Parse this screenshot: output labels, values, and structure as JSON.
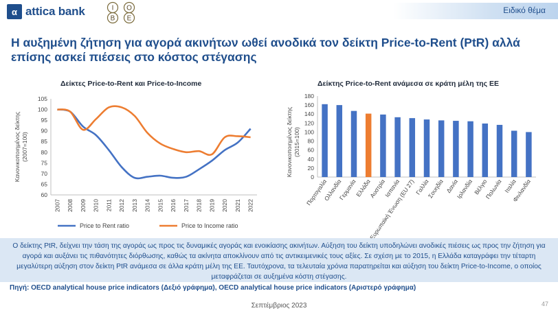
{
  "header": {
    "brand_mark": "α",
    "brand_name": "attica bank",
    "partner_logo": "IOBE",
    "section_label": "Ειδικό θέμα"
  },
  "slide_title": "Η αυξημένη ζήτηση για αγορά ακινήτων ωθεί ανοδικά τον δείκτη Price-to-Rent (PtR) αλλά επίσης ασκεί πιέσεις στο κόστος στέγασης",
  "chart_data": [
    {
      "type": "line",
      "title": "Δείκτες Price-to-Rent και Price-to-Income",
      "ylabel": "Κανονικοποιημένος δείκτης (2007=100)",
      "ylabel_lines": [
        "Κανονικοποιημένος δείκτης",
        "(2007=100)"
      ],
      "x": [
        "2007",
        "2008",
        "2009",
        "2010",
        "2011",
        "2012",
        "2013",
        "2014",
        "2015",
        "2016",
        "2017",
        "2018",
        "2019",
        "2020",
        "2021",
        "2022"
      ],
      "ylim": [
        60,
        105
      ],
      "yticks": [
        60,
        65,
        70,
        75,
        80,
        85,
        90,
        95,
        100,
        105
      ],
      "grid": false,
      "legend_position": "bottom",
      "series": [
        {
          "name": "Price to Rent ratio",
          "color": "#4472c4",
          "values": [
            100,
            99,
            92,
            88,
            81,
            73,
            68,
            68.5,
            69,
            68,
            68.5,
            72,
            76,
            81,
            84.5,
            91
          ]
        },
        {
          "name": "Price to Income ratio",
          "color": "#ed7d31",
          "values": [
            100,
            99,
            90.5,
            95.5,
            101,
            101,
            97,
            89,
            84,
            81.5,
            80,
            80.5,
            79,
            87,
            87.5,
            87
          ]
        }
      ]
    },
    {
      "type": "bar",
      "title": "Δείκτης Price-to-Rent ανάμεσα σε κράτη μέλη της ΕΕ",
      "ylabel": "Κανονικοποιημένος δείκτης (2015=100)",
      "ylabel_lines": [
        "Κανονικοποιημένος δείκτης",
        "(2015=100)"
      ],
      "categories": [
        "Πορτογαλία",
        "Ολλανδία",
        "Γερμανία",
        "Ελλάδα",
        "Αυστρία",
        "Ισπανία",
        "Ευρωπαϊκή Ένωση (EU 27)",
        "Γαλλία",
        "Σουηδία",
        "Δανία",
        "Ιρλανδία",
        "Βέλγιο",
        "Πολωνία",
        "Ιταλία",
        "Φινλανδία"
      ],
      "values": [
        162,
        160,
        147,
        141,
        139,
        133,
        131,
        128,
        126,
        125,
        124,
        119,
        116,
        103,
        100
      ],
      "bar_color": "#4472c4",
      "highlight": {
        "category": "Ελλάδα",
        "color": "#ed7d31"
      },
      "ylim": [
        0,
        180
      ],
      "yticks": [
        0,
        20,
        40,
        60,
        80,
        100,
        120,
        140,
        160,
        180
      ],
      "grid": false
    }
  ],
  "info_text": "Ο δείκτης PtR, δείχνει την τάση της αγοράς ως προς τις δυναμικές αγοράς και ενοικίασης ακινήτων. Αύξηση του δείκτη υποδηλώνει ανοδικές πιέσεις ως προς την ζήτηση για αγορά και αυξάνει τις πιθανότητες διόρθωσης, καθώς τα ακίνητα αποκλίνουν από τις αντικειμενικές τους αξίες. Σε σχέση με το 2015, η Ελλάδα καταγράφει την τέταρτη μεγαλύτερη αύξηση στον δείκτη PtR ανάμεσα σε άλλα κράτη μέλη της ΕΕ. Ταυτόχρονα, τα τελευταία χρόνια παρατηρείται και αύξηση του δείκτη Price-to-Income, ο οποίος μεταφράζεται σε αυξημένα κόστη στέγασης.",
  "source": "Πηγή: OECD analytical house price indicators (Δεξιό γράφημα), OECD analytical house price indicators (Αριστερό γράφημα)",
  "footer": {
    "date": "Σεπτέμβριος 2023",
    "page": "47"
  }
}
